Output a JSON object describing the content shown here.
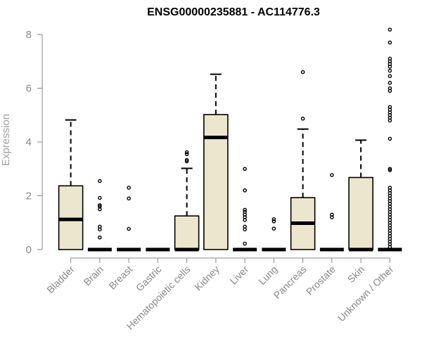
{
  "chart_data": {
    "type": "boxplot",
    "title": "ENSG00000235881 - AC114776.3",
    "xlabel": "",
    "ylabel": "Expression",
    "ylim": [
      0,
      8.2
    ],
    "yticks": [
      0,
      2,
      4,
      6,
      8
    ],
    "grid": false,
    "legend": "none",
    "box_fill": "#ede6ce",
    "box_stroke": "#000000",
    "categories": [
      "Bladder",
      "Brain",
      "Breast",
      "Gastric",
      "Hematopoietic cells",
      "Kidney",
      "Liver",
      "Lung",
      "Pancreas",
      "Prostate",
      "Skin",
      "Unknown / Other"
    ],
    "boxes": [
      {
        "category": "Bladder",
        "q1": 0,
        "median": 1.12,
        "q3": 2.37,
        "whisker_low": 0,
        "whisker_high": 4.82,
        "outliers": []
      },
      {
        "category": "Brain",
        "q1": 0,
        "median": 0,
        "q3": 0,
        "whisker_low": 0,
        "whisker_high": 0,
        "outliers": [
          0.45,
          0.75,
          0.85,
          1.5,
          1.6,
          1.65,
          1.92,
          2.55
        ]
      },
      {
        "category": "Breast",
        "q1": 0,
        "median": 0,
        "q3": 0,
        "whisker_low": 0,
        "whisker_high": 0,
        "outliers": [
          0.77,
          1.9,
          2.3
        ]
      },
      {
        "category": "Gastric",
        "q1": 0,
        "median": 0,
        "q3": 0,
        "whisker_low": 0,
        "whisker_high": 0,
        "outliers": []
      },
      {
        "category": "Hematopoietic cells",
        "q1": 0,
        "median": 0,
        "q3": 1.25,
        "whisker_low": 0,
        "whisker_high": 3.02,
        "outliers": [
          3.28,
          3.33,
          3.55,
          3.62
        ]
      },
      {
        "category": "Kidney",
        "q1": 0,
        "median": 4.17,
        "q3": 5.02,
        "whisker_low": 0,
        "whisker_high": 6.52,
        "outliers": []
      },
      {
        "category": "Liver",
        "q1": 0,
        "median": 0,
        "q3": 0,
        "whisker_low": 0,
        "whisker_high": 0,
        "outliers": [
          0.22,
          0.75,
          0.85,
          1.1,
          1.2,
          1.3,
          1.4,
          1.48,
          2.2,
          3.0
        ]
      },
      {
        "category": "Lung",
        "q1": 0,
        "median": 0,
        "q3": 0,
        "whisker_low": 0,
        "whisker_high": 0,
        "outliers": [
          0.78,
          1.05,
          1.13
        ]
      },
      {
        "category": "Pancreas",
        "q1": 0,
        "median": 0.98,
        "q3": 1.93,
        "whisker_low": 0,
        "whisker_high": 4.48,
        "outliers": [
          4.87,
          6.6
        ]
      },
      {
        "category": "Prostate",
        "q1": 0,
        "median": 0,
        "q3": 0,
        "whisker_low": 0,
        "whisker_high": 0,
        "outliers": [
          1.2,
          1.3,
          2.77
        ]
      },
      {
        "category": "Skin",
        "q1": 0,
        "median": 0,
        "q3": 2.68,
        "whisker_low": 0,
        "whisker_high": 4.07,
        "outliers": []
      },
      {
        "category": "Unknown / Other",
        "q1": 0,
        "median": 0,
        "q3": 0,
        "whisker_low": 0,
        "whisker_high": 0,
        "outliers": [
          0.1,
          0.2,
          0.3,
          0.4,
          0.5,
          0.6,
          0.7,
          0.8,
          0.9,
          1.0,
          1.1,
          1.2,
          1.3,
          1.4,
          1.5,
          1.6,
          1.7,
          1.8,
          1.9,
          2.0,
          2.1,
          2.2,
          2.3,
          2.95,
          3.0,
          4.12,
          4.8,
          4.9,
          5.0,
          5.1,
          5.2,
          5.3,
          5.9,
          6.0,
          6.2,
          6.45,
          6.65,
          6.8,
          6.9,
          7.0,
          7.1,
          7.7,
          8.18
        ]
      }
    ]
  }
}
